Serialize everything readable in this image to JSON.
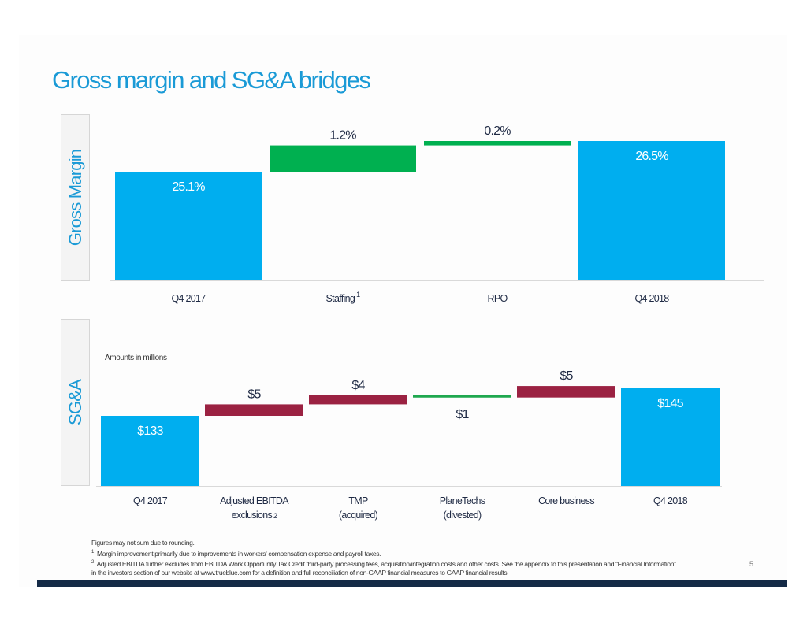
{
  "slide": {
    "title": "Gross margin and SG&A bridges",
    "page_number": "5"
  },
  "colors": {
    "total": "#00aeef",
    "increase_green": "#00b050",
    "increase_red": "#9b2242",
    "decrease_green": "#1fa84f",
    "title_blue": "#1a9ad6",
    "footer_bar": "#142a46"
  },
  "chart_data": [
    {
      "type": "bar",
      "subtype": "waterfall",
      "side_label": "Gross Margin",
      "categories": [
        "Q4 2017",
        "Staffing",
        "RPO",
        "Q4 2018"
      ],
      "category_superscripts": [
        "",
        "1",
        "",
        ""
      ],
      "kinds": [
        "total",
        "delta",
        "delta",
        "total"
      ],
      "values": [
        25.1,
        1.2,
        0.2,
        26.5
      ],
      "labels": [
        "25.1%",
        "1.2%",
        "0.2%",
        "26.5%"
      ],
      "unit": "%",
      "ylim": [
        0,
        27
      ],
      "grid": false
    },
    {
      "type": "bar",
      "subtype": "waterfall",
      "side_label": "SG&A",
      "note": "Amounts in millions",
      "categories": [
        "Q4 2017",
        "Adjusted EBITDA exclusions",
        "TMP (acquired)",
        "PlaneTechs (divested)",
        "Core business",
        "Q4 2018"
      ],
      "category_lines": [
        [
          "Q4 2017"
        ],
        [
          "Adjusted EBITDA",
          "exclusions"
        ],
        [
          "TMP",
          "(acquired)"
        ],
        [
          "PlaneTechs",
          "(divested)"
        ],
        [
          "Core business"
        ],
        [
          "Q4 2018"
        ]
      ],
      "category_superscripts": [
        "",
        "2",
        "",
        "",
        "",
        ""
      ],
      "kinds": [
        "total",
        "delta",
        "delta",
        "delta",
        "delta",
        "total"
      ],
      "values": [
        133,
        5,
        4,
        -1,
        5,
        145
      ],
      "labels": [
        "$133",
        "$5",
        "$4",
        "$1",
        "$5",
        "$145"
      ],
      "unit": "$M",
      "ylim": [
        0,
        165
      ],
      "grid": false
    }
  ],
  "footnotes": {
    "rounding": "Figures may not sum due to rounding.",
    "note1_marker": "1",
    "note1": "Margin improvement primarily due to improvements in workers' compensation expense and payroll taxes.",
    "note2_marker": "2",
    "note2_line1": "Adjusted EBITDA further excludes from EBITDA Work Opportunity Tax Credit third-party processing fees, acquisition/integration costs and other costs. See the appendix to this presentation and “Financial Information”",
    "note2_line2": "in the investors section of our website at www.trueblue.com for a definition and full reconciliation of non-GAAP financial measures to GAAP financial results."
  }
}
